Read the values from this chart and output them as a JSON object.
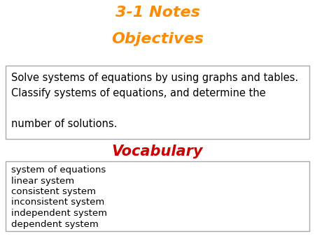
{
  "title_line1": "3-1 Notes",
  "title_line2": "Objectives",
  "title_color": "#FF8C00",
  "title_fontsize": 16,
  "objectives_lines": [
    "Solve systems of equations by using graphs and tables.",
    "Classify systems of equations, and determine the",
    "",
    "number of solutions."
  ],
  "objectives_fontsize": 10.5,
  "objectives_box_edge": "#aaaaaa",
  "vocab_label": "Vocabulary",
  "vocab_color": "#CC0000",
  "vocab_fontsize": 15,
  "vocab_items": [
    "system of equations",
    "linear system",
    "consistent system",
    "inconsistent system",
    "independent system",
    "dependent system"
  ],
  "vocab_fontsize_items": 9.5,
  "vocab_box_edge": "#aaaaaa",
  "background_color": "#ffffff"
}
